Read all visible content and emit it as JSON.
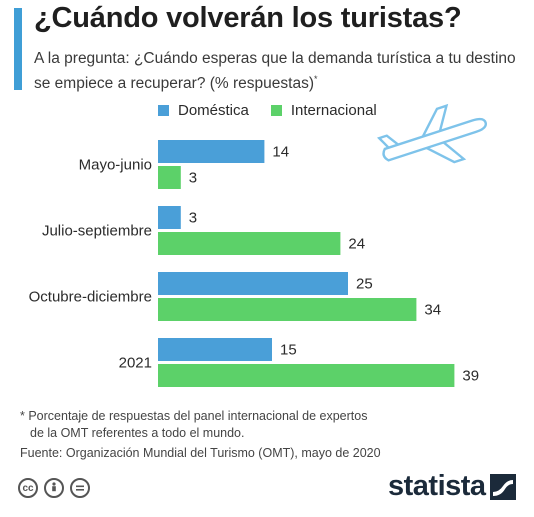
{
  "header": {
    "title": "¿Cuándo volverán los turistas?",
    "subtitle": "A la pregunta: ¿Cuándo esperas que la demanda turística a tu destino se empiece a recuperar? (% respuestas)",
    "subtitle_mark": "*"
  },
  "colors": {
    "accent": "#3f9ed6",
    "domestica": "#4a9fd8",
    "internacional": "#5cd169"
  },
  "chart_data": {
    "type": "bar",
    "orientation": "horizontal",
    "categories": [
      "Mayo-junio",
      "Julio-septiembre",
      "Octubre-diciembre",
      "2021"
    ],
    "series": [
      {
        "name": "Doméstica",
        "values": [
          14,
          3,
          25,
          15
        ],
        "color": "#4a9fd8"
      },
      {
        "name": "Internacional",
        "values": [
          3,
          24,
          34,
          39
        ],
        "color": "#5cd169"
      }
    ],
    "legend_position": "top",
    "grid": false,
    "xlim": [
      0,
      45
    ]
  },
  "footnote": {
    "line1": "* Porcentaje de respuestas del panel internacional de expertos",
    "line2": "de la OMT referentes a todo el mundo."
  },
  "source": "Fuente: Organización Mundial del Turismo (OMT), mayo de 2020",
  "icons": [
    "cc-icon",
    "by-person-icon",
    "nd-equals-icon",
    "airplane-icon",
    "statista-logo-icon"
  ],
  "brand": "statista"
}
